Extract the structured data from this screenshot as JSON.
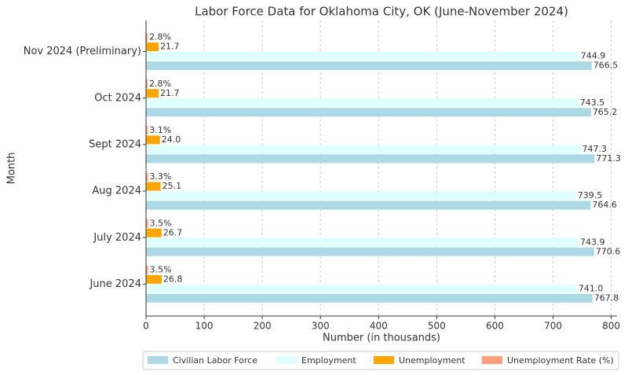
{
  "chart_data": {
    "type": "barh",
    "title": "Labor Force Data for Oklahoma City, OK (June-November 2024)",
    "x_label": "Number (in thousands)",
    "y_label": "Month",
    "categories": [
      "June 2024",
      "July 2024",
      "Aug 2024",
      "Sept 2024",
      "Oct 2024",
      "Nov 2024 (Preliminary)"
    ],
    "series": [
      {
        "name": "Civilian Labor Force",
        "color": "#add8e6",
        "values": [
          767.8,
          770.6,
          764.6,
          771.3,
          765.2,
          766.5
        ],
        "value_labels": [
          "767.8",
          "770.6",
          "764.6",
          "771.3",
          "765.2",
          "766.5"
        ]
      },
      {
        "name": "Employment",
        "color": "#e0ffff",
        "values": [
          741.0,
          743.9,
          739.5,
          747.3,
          743.5,
          744.9
        ],
        "value_labels": [
          "741.0",
          "743.9",
          "739.5",
          "747.3",
          "743.5",
          "744.9"
        ]
      },
      {
        "name": "Unemployment",
        "color": "#ffa500",
        "values": [
          26.8,
          26.7,
          25.1,
          24.0,
          21.7,
          21.7
        ],
        "value_labels": [
          "26.8",
          "26.7",
          "25.1",
          "24.0",
          "21.7",
          "21.7"
        ]
      },
      {
        "name": "Unemployment Rate (%)",
        "color": "#ffa07a",
        "values": [
          3.5,
          3.5,
          3.3,
          3.1,
          2.8,
          2.8
        ],
        "value_labels": [
          "3.5%",
          "3.5%",
          "3.3%",
          "3.1%",
          "2.8%",
          "2.8%"
        ]
      }
    ],
    "xlim": [
      0,
      810
    ],
    "xticks": [
      0,
      100,
      200,
      300,
      400,
      500,
      600,
      700,
      800
    ],
    "grid": true,
    "legend": "bottom"
  }
}
